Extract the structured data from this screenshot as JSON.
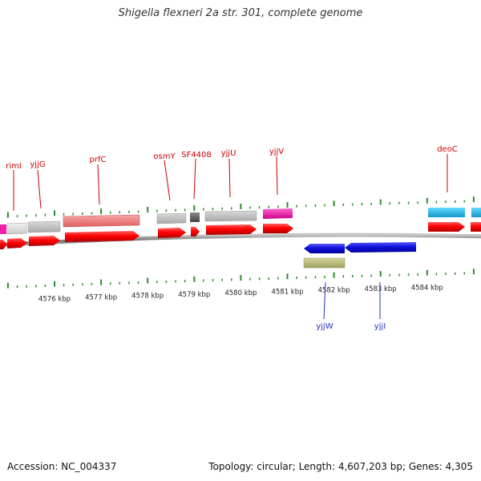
{
  "title": "Shigella flexneri 2a str. 301, complete genome",
  "footer": {
    "accession_label": "Accession:",
    "accession": "NC_004337",
    "topology_label": "Topology:",
    "topology": "circular;",
    "length_label": "Length:",
    "length": "4,607,203 bp;",
    "genes_label": "Genes:",
    "genes": "4,305"
  },
  "colors": {
    "label_top": "#cc0000",
    "label_bottom": "#2233bb",
    "tick": "#2e8b2e",
    "backbone": "#8a8a8a"
  },
  "axis": {
    "unit": "kbp",
    "ticks_kbp": [
      4576,
      4577,
      4578,
      4579,
      4580,
      4581,
      4582,
      4583,
      4584
    ]
  },
  "genes": [
    {
      "name": "rimI",
      "strand": "+",
      "color": "#e8e8e8"
    },
    {
      "name": "yjjG",
      "strand": "+",
      "color": "#cccccc"
    },
    {
      "name": "prfC",
      "strand": "+",
      "color": "#f08080"
    },
    {
      "name": "osmY",
      "strand": "+",
      "color": "#cccccc"
    },
    {
      "name": "SF4408",
      "strand": "+",
      "color": "#666666"
    },
    {
      "name": "yjjU",
      "strand": "+",
      "color": "#cccccc"
    },
    {
      "name": "yjjV",
      "strand": "+",
      "color": "#ee22aa"
    },
    {
      "name": "yjjW",
      "strand": "-",
      "color": "#bbbb77"
    },
    {
      "name": "yjjI",
      "strand": "-",
      "color": "#1111dd"
    },
    {
      "name": "deoC",
      "strand": "+",
      "color": "#22bbee"
    }
  ]
}
